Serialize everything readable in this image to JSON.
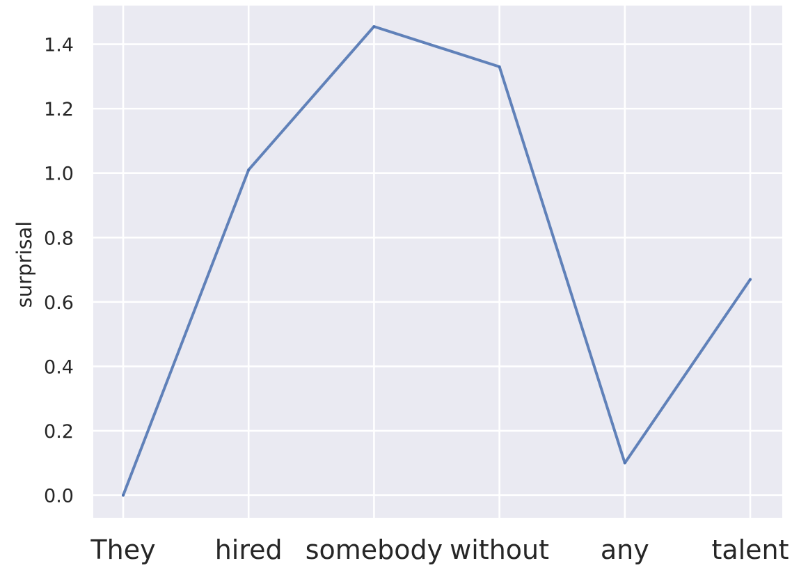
{
  "chart_data": {
    "type": "line",
    "title": "",
    "xlabel": "",
    "ylabel": "surprisal",
    "categories": [
      "They",
      "hired",
      "somebody",
      "without",
      "any",
      "talent"
    ],
    "series": [
      {
        "values": [
          0.0,
          1.01,
          1.455,
          1.33,
          0.1,
          0.67
        ]
      }
    ],
    "ylim": [
      -0.07,
      1.52
    ],
    "yticks": [
      0.0,
      0.2,
      0.4,
      0.6,
      0.8,
      1.0,
      1.2,
      1.4
    ],
    "ytick_labels": [
      "0.0",
      "0.2",
      "0.4",
      "0.6",
      "0.8",
      "1.0",
      "1.2",
      "1.4"
    ],
    "grid": true,
    "colors": {
      "background": "#eaeaf2",
      "grid": "#ffffff",
      "line": "#4c72b0"
    }
  }
}
